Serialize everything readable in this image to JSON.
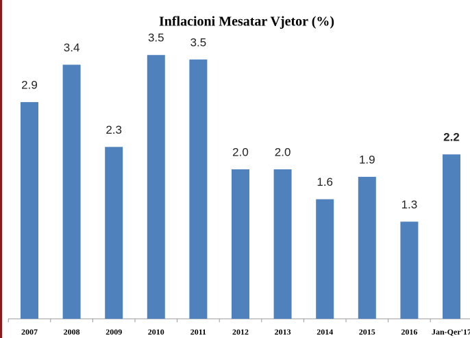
{
  "chart_data": {
    "type": "bar",
    "title": "Inflacioni Mesatar Vjetor (%)",
    "categories": [
      "2007",
      "2008",
      "2009",
      "2010",
      "2011",
      "2012",
      "2013",
      "2014",
      "2015",
      "2016",
      "Jan-Qer'17"
    ],
    "values": [
      2.9,
      3.4,
      2.3,
      3.53,
      3.47,
      2.0,
      2.0,
      1.6,
      1.9,
      1.3,
      2.2
    ],
    "value_labels": [
      "2.9",
      "3.4",
      "2.3",
      "3.5",
      "3.5",
      "2.0",
      "2.0",
      "1.6",
      "1.9",
      "1.3",
      "2.2"
    ],
    "color": "#4f81bd",
    "ylim": [
      0,
      4
    ]
  }
}
